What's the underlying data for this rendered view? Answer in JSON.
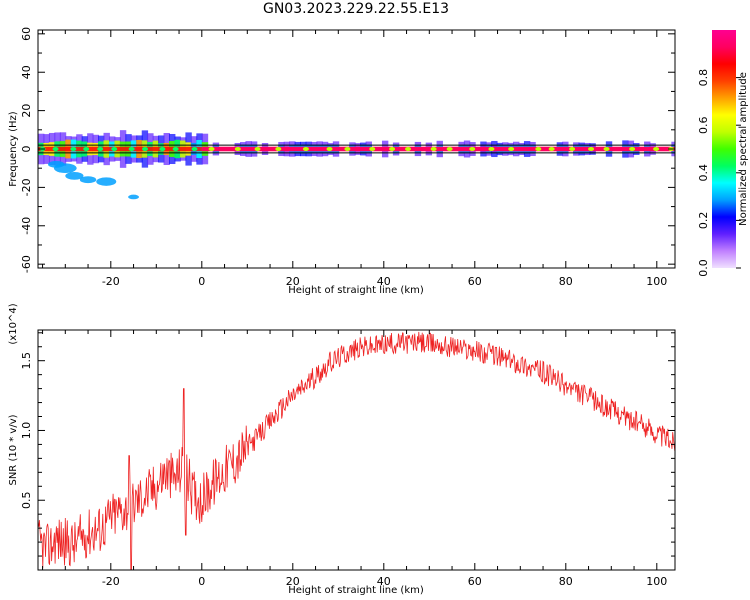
{
  "title": "GN03.2023.229.22.55.E13",
  "colors": {
    "trace": "#ee2222",
    "axis": "#000000",
    "background": "#ffffff"
  },
  "chart_data": [
    {
      "type": "heatmap",
      "xlabel": "Height of straight line (km)",
      "ylabel": "Frequency (Hz)",
      "xlim": [
        -36,
        104
      ],
      "ylim": [
        -62,
        62
      ],
      "xticks": [
        -20,
        0,
        20,
        40,
        60,
        80,
        100
      ],
      "yticks": [
        -60,
        -40,
        -20,
        0,
        20,
        40,
        60
      ],
      "zlabel": "Normalized spectral amplitude",
      "zlim": [
        0,
        1
      ],
      "zticks": [
        0.0,
        0.2,
        0.4,
        0.6,
        0.8
      ],
      "colormap": [
        "#f0e0ff",
        "#c080ff",
        "#6020ff",
        "#0000ff",
        "#00a0ff",
        "#00ffff",
        "#00ff60",
        "#40ff00",
        "#c0ff00",
        "#ffff00",
        "#ffa000",
        "#ff4000",
        "#ff0000",
        "#ff0060",
        "#ff0090"
      ],
      "carrier_frequency_hz": 0,
      "reference_lines_hz": [
        2,
        -2
      ],
      "grid": false
    },
    {
      "type": "line",
      "xlabel": "Height of straight line (km)",
      "ylabel": "SNR (10 * v/v)",
      "y_multiplier_label": "(x10^4)",
      "xlim": [
        -36,
        104
      ],
      "ylim": [
        0,
        1.72
      ],
      "xticks": [
        -20,
        0,
        20,
        40,
        60,
        80,
        100
      ],
      "yticks": [
        0.5,
        1.0,
        1.5
      ],
      "series": [
        {
          "x": [
            -36,
            -34,
            -32,
            -30,
            -28,
            -26,
            -24,
            -22,
            -20,
            -18,
            -16,
            -14,
            -12,
            -10,
            -8,
            -6,
            -4,
            -2,
            0,
            2,
            4,
            6,
            8,
            10,
            12,
            14,
            16,
            18,
            20,
            22,
            24,
            26,
            28,
            30,
            32,
            34,
            36,
            38,
            40,
            42,
            44,
            46,
            48,
            50,
            52,
            54,
            56,
            58,
            60,
            62,
            64,
            66,
            68,
            70,
            72,
            74,
            76,
            78,
            80,
            82,
            84,
            86,
            88,
            90,
            92,
            94,
            96,
            98,
            100,
            102,
            104
          ],
          "values": [
            0.2,
            0.15,
            0.22,
            0.2,
            0.18,
            0.25,
            0.28,
            0.3,
            0.38,
            0.42,
            0.45,
            0.5,
            0.55,
            0.6,
            0.7,
            0.65,
            0.75,
            0.55,
            0.5,
            0.6,
            0.68,
            0.75,
            0.8,
            0.88,
            0.95,
            1.02,
            1.1,
            1.18,
            1.25,
            1.3,
            1.36,
            1.42,
            1.48,
            1.52,
            1.56,
            1.58,
            1.6,
            1.6,
            1.62,
            1.62,
            1.63,
            1.63,
            1.63,
            1.62,
            1.62,
            1.6,
            1.6,
            1.58,
            1.58,
            1.55,
            1.55,
            1.52,
            1.5,
            1.48,
            1.45,
            1.43,
            1.4,
            1.36,
            1.32,
            1.28,
            1.25,
            1.22,
            1.18,
            1.15,
            1.12,
            1.08,
            1.05,
            1.02,
            0.98,
            0.95,
            0.92
          ]
        }
      ],
      "spikes": [
        {
          "x": -4,
          "value": 1.3
        },
        {
          "x": -3.5,
          "value": 0.25
        },
        {
          "x": -16,
          "value": 0.82
        },
        {
          "x": -15.5,
          "value": 0.0
        }
      ],
      "grid": false
    }
  ]
}
